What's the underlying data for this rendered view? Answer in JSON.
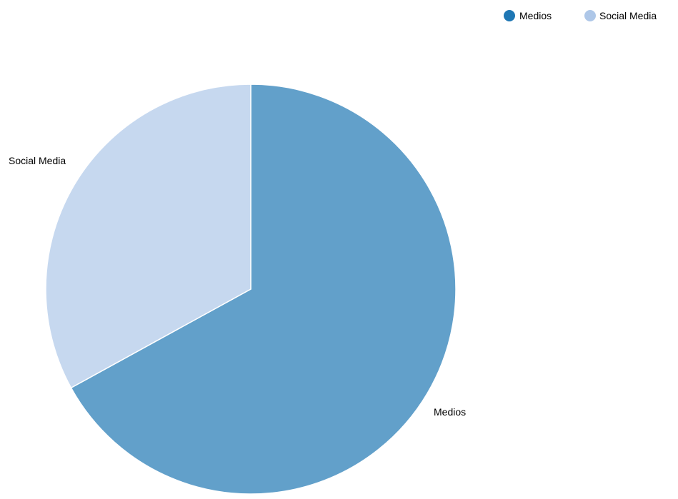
{
  "chart_data": {
    "type": "pie",
    "categories": [
      "Medios",
      "Social Media"
    ],
    "values": [
      67,
      33
    ],
    "colors": {
      "slices": [
        "#62a0ca",
        "#c6d8ef"
      ],
      "legend": [
        "#1f77b4",
        "#aec7e8"
      ]
    },
    "legend_position": "top-right",
    "start_angle_deg": 0,
    "direction": "clockwise"
  }
}
